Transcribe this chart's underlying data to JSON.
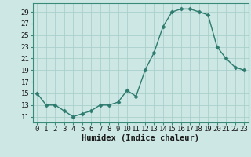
{
  "x": [
    0,
    1,
    2,
    3,
    4,
    5,
    6,
    7,
    8,
    9,
    10,
    11,
    12,
    13,
    14,
    15,
    16,
    17,
    18,
    19,
    20,
    21,
    22,
    23
  ],
  "y": [
    15,
    13,
    13,
    12,
    11,
    11.5,
    12,
    13,
    13,
    13.5,
    15.5,
    14.5,
    19,
    22,
    26.5,
    29,
    29.5,
    29.5,
    29,
    28.5,
    23,
    21,
    19.5,
    19
  ],
  "line_color": "#2d7a6e",
  "marker": "D",
  "marker_size": 2.5,
  "bg_color": "#cde8e4",
  "grid_color": "#aacfca",
  "xlabel": "Humidex (Indice chaleur)",
  "xlabel_fontsize": 7.5,
  "yticks": [
    11,
    13,
    15,
    17,
    19,
    21,
    23,
    25,
    27,
    29
  ],
  "xticks": [
    0,
    1,
    2,
    3,
    4,
    5,
    6,
    7,
    8,
    9,
    10,
    11,
    12,
    13,
    14,
    15,
    16,
    17,
    18,
    19,
    20,
    21,
    22,
    23
  ],
  "xlim": [
    -0.5,
    23.5
  ],
  "ylim": [
    10.0,
    30.5
  ],
  "tick_fontsize": 6.5,
  "spine_color": "#3a8a7a"
}
